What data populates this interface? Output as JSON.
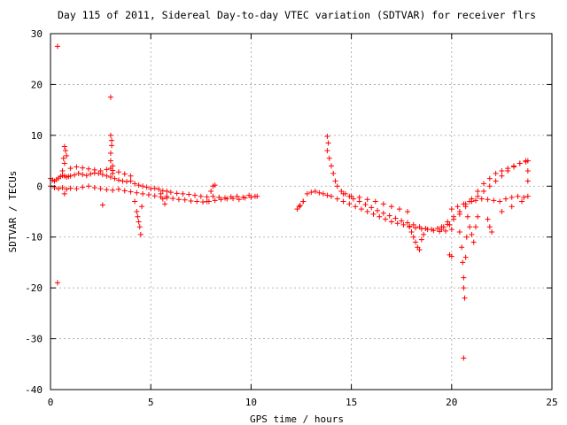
{
  "chart_data": {
    "type": "scatter",
    "title": "Day 115 of 2011, Sidereal Day-to-day VTEC variation (SDTVAR) for receiver flrs",
    "xlabel": "GPS time / hours",
    "ylabel": "SDTVAR / TECUs",
    "xlim": [
      0,
      25
    ],
    "ylim": [
      -40,
      30
    ],
    "xticks": [
      "0",
      "5",
      "10",
      "15",
      "20",
      "25"
    ],
    "yticks": [
      "30",
      "20",
      "10",
      "0",
      "-10",
      "-20",
      "-30",
      "-40"
    ],
    "grid": true,
    "marker": "+",
    "color": "#ff0000",
    "series": [
      {
        "x": [
          0.0,
          0.1,
          0.2,
          0.3,
          0.4,
          0.5,
          0.6,
          0.7,
          0.8,
          0.9,
          1.0,
          1.2,
          1.4,
          1.6,
          1.8,
          2.0,
          2.2,
          2.4,
          2.6,
          2.8,
          3.0,
          3.2,
          3.4,
          3.6,
          3.8,
          4.0,
          4.2,
          4.4,
          4.6,
          4.8,
          5.0,
          5.2,
          5.4,
          5.6,
          5.8,
          6.0,
          6.3,
          6.6,
          6.9,
          7.2,
          7.5,
          7.8,
          8.1,
          8.4,
          8.7,
          9.0,
          9.3,
          9.6,
          9.9,
          10.2,
          0.0,
          0.2,
          0.4,
          0.6,
          0.8,
          1.0,
          1.3,
          1.6,
          1.9,
          2.2,
          2.5,
          2.8,
          3.1,
          3.4,
          3.7,
          4.0,
          4.3,
          4.6,
          4.9,
          5.2,
          5.5,
          5.8,
          6.1,
          6.4,
          6.7,
          7.0,
          7.3,
          7.6,
          7.9,
          8.2,
          8.5,
          8.8,
          9.1,
          9.4,
          9.7,
          10.0,
          10.3,
          1.0,
          1.3,
          1.6,
          1.9,
          2.2,
          2.5,
          2.8,
          3.1,
          3.4,
          3.7,
          4.0,
          0.6,
          0.7,
          0.8,
          0.75,
          0.7,
          0.65,
          3.0,
          3.0,
          3.05,
          3.05,
          3.0,
          3.1,
          3.1,
          3.0,
          4.2,
          4.3,
          4.35,
          4.4,
          4.45,
          4.5,
          4.55,
          5.5,
          5.6,
          5.7,
          5.8,
          7.8,
          8.0,
          8.1,
          8.2,
          0.35,
          0.35,
          3.0,
          0.7,
          2.6
        ],
        "y": [
          1.5,
          1.2,
          1.0,
          1.3,
          1.6,
          1.9,
          2.1,
          2.0,
          1.8,
          1.9,
          2.0,
          2.2,
          2.5,
          2.3,
          2.1,
          2.4,
          2.6,
          2.5,
          2.3,
          2.0,
          1.8,
          1.5,
          1.2,
          1.0,
          0.9,
          1.0,
          0.5,
          0.2,
          0.0,
          -0.2,
          -0.5,
          -0.4,
          -0.6,
          -0.9,
          -1.0,
          -1.2,
          -1.4,
          -1.5,
          -1.6,
          -1.8,
          -2.0,
          -2.1,
          -2.0,
          -2.2,
          -2.3,
          -2.1,
          -2.0,
          -2.2,
          -1.8,
          -2.0,
          0.0,
          -0.3,
          -0.5,
          -0.3,
          -0.6,
          -0.4,
          -0.5,
          -0.2,
          0.0,
          -0.3,
          -0.5,
          -0.7,
          -0.8,
          -0.6,
          -0.9,
          -1.1,
          -1.3,
          -1.5,
          -1.7,
          -1.9,
          -2.1,
          -2.3,
          -2.4,
          -2.6,
          -2.7,
          -2.9,
          -3.0,
          -3.1,
          -3.0,
          -2.8,
          -2.6,
          -2.5,
          -2.4,
          -2.6,
          -2.3,
          -2.2,
          -2.0,
          3.5,
          3.8,
          3.6,
          3.4,
          3.2,
          3.0,
          3.3,
          3.1,
          2.8,
          2.4,
          2.0,
          3.0,
          4.5,
          6.0,
          7.0,
          7.8,
          5.5,
          5.0,
          6.5,
          8.0,
          9.0,
          10.0,
          4.0,
          2.5,
          3.5,
          -3.0,
          -5.0,
          -6.0,
          -7.0,
          -8.0,
          -9.5,
          -4.0,
          -1.5,
          -2.5,
          -3.5,
          -2.0,
          -3.0,
          -1.0,
          0.0,
          0.2,
          27.5,
          -19.0,
          17.5,
          -1.5,
          -3.7
        ]
      },
      {
        "x": [
          12.4,
          12.6,
          12.8,
          13.0,
          13.2,
          13.4,
          13.6,
          13.8,
          14.0,
          14.3,
          14.6,
          14.9,
          15.2,
          15.5,
          15.8,
          16.1,
          16.4,
          16.7,
          17.0,
          17.3,
          17.6,
          17.9,
          18.2,
          18.5,
          18.8,
          19.1,
          19.4,
          19.7,
          20.0,
          13.8,
          13.9,
          14.0,
          14.1,
          14.2,
          14.3,
          14.5,
          14.7,
          14.9,
          15.1,
          15.4,
          15.7,
          16.0,
          16.3,
          16.6,
          16.9,
          17.2,
          17.5,
          17.8,
          18.1,
          18.4,
          18.7,
          19.0,
          19.3,
          19.6,
          19.9,
          14.6,
          15.0,
          15.4,
          15.8,
          16.2,
          16.6,
          17.0,
          17.4,
          17.8,
          12.3,
          12.45,
          12.6,
          17.9,
          18.0,
          18.1,
          18.2,
          18.3,
          18.4,
          18.5,
          18.6,
          13.8,
          13.85
        ],
        "y": [
          -4.0,
          -3.0,
          -1.5,
          -1.2,
          -1.0,
          -1.3,
          -1.5,
          -1.8,
          -2.0,
          -2.5,
          -3.0,
          -3.5,
          -4.0,
          -4.5,
          -5.0,
          -5.5,
          -6.0,
          -6.5,
          -7.0,
          -7.3,
          -7.6,
          -7.9,
          -8.2,
          -8.4,
          -8.5,
          -8.7,
          -8.9,
          -8.8,
          -8.5,
          7.0,
          5.5,
          4.0,
          2.5,
          1.0,
          0.0,
          -1.0,
          -1.5,
          -2.0,
          -2.5,
          -3.0,
          -3.6,
          -4.2,
          -4.8,
          -5.3,
          -5.8,
          -6.3,
          -6.8,
          -7.2,
          -7.6,
          -8.0,
          -8.3,
          -8.5,
          -8.3,
          -8.0,
          -7.6,
          -1.5,
          -2.0,
          -2.2,
          -2.6,
          -3.0,
          -3.5,
          -4.0,
          -4.5,
          -5.0,
          -4.5,
          -3.8,
          -3.0,
          -8.0,
          -9.0,
          -10.0,
          -11.0,
          -12.0,
          -12.5,
          -10.5,
          -9.5,
          9.8,
          8.5
        ]
      },
      {
        "x": [
          19.5,
          19.8,
          20.1,
          20.4,
          20.7,
          21.0,
          21.3,
          21.6,
          21.9,
          22.2,
          22.5,
          22.8,
          23.1,
          23.4,
          23.7,
          19.5,
          19.8,
          20.1,
          20.4,
          20.7,
          21.0,
          21.3,
          21.6,
          21.9,
          22.2,
          22.5,
          22.8,
          23.1,
          23.4,
          23.7,
          20.0,
          20.3,
          20.6,
          20.9,
          21.2,
          21.5,
          21.8,
          22.1,
          22.4,
          22.7,
          23.0,
          23.3,
          23.6,
          20.4,
          20.5,
          20.55,
          20.6,
          20.6,
          20.65,
          20.7,
          20.75,
          20.8,
          20.9,
          21.0,
          21.1,
          21.2,
          21.3,
          21.8,
          21.9,
          22.0,
          22.5,
          23.0,
          23.5,
          19.9,
          20.0,
          23.8,
          23.8,
          23.8,
          23.8,
          20.6
        ],
        "y": [
          -8.5,
          -7.5,
          -6.5,
          -5.5,
          -4.0,
          -3.0,
          -2.0,
          -1.0,
          0.0,
          1.0,
          2.0,
          3.0,
          3.8,
          4.5,
          5.0,
          -8.0,
          -7.0,
          -6.0,
          -5.0,
          -3.5,
          -2.5,
          -1.0,
          0.5,
          1.5,
          2.5,
          3.0,
          3.5,
          4.0,
          4.5,
          4.8,
          -4.5,
          -4.0,
          -3.5,
          -3.0,
          -2.8,
          -2.5,
          -2.6,
          -2.8,
          -3.0,
          -2.5,
          -2.2,
          -2.0,
          -2.2,
          -9.0,
          -12.0,
          -15.0,
          -18.0,
          -20.0,
          -22.0,
          -14.0,
          -10.0,
          -6.0,
          -8.0,
          -9.5,
          -11.0,
          -8.0,
          -6.0,
          -6.5,
          -8.0,
          -9.0,
          -5.0,
          -4.0,
          -3.0,
          -13.5,
          -13.8,
          5.0,
          3.0,
          1.0,
          -2.0,
          -33.8
        ]
      }
    ]
  }
}
